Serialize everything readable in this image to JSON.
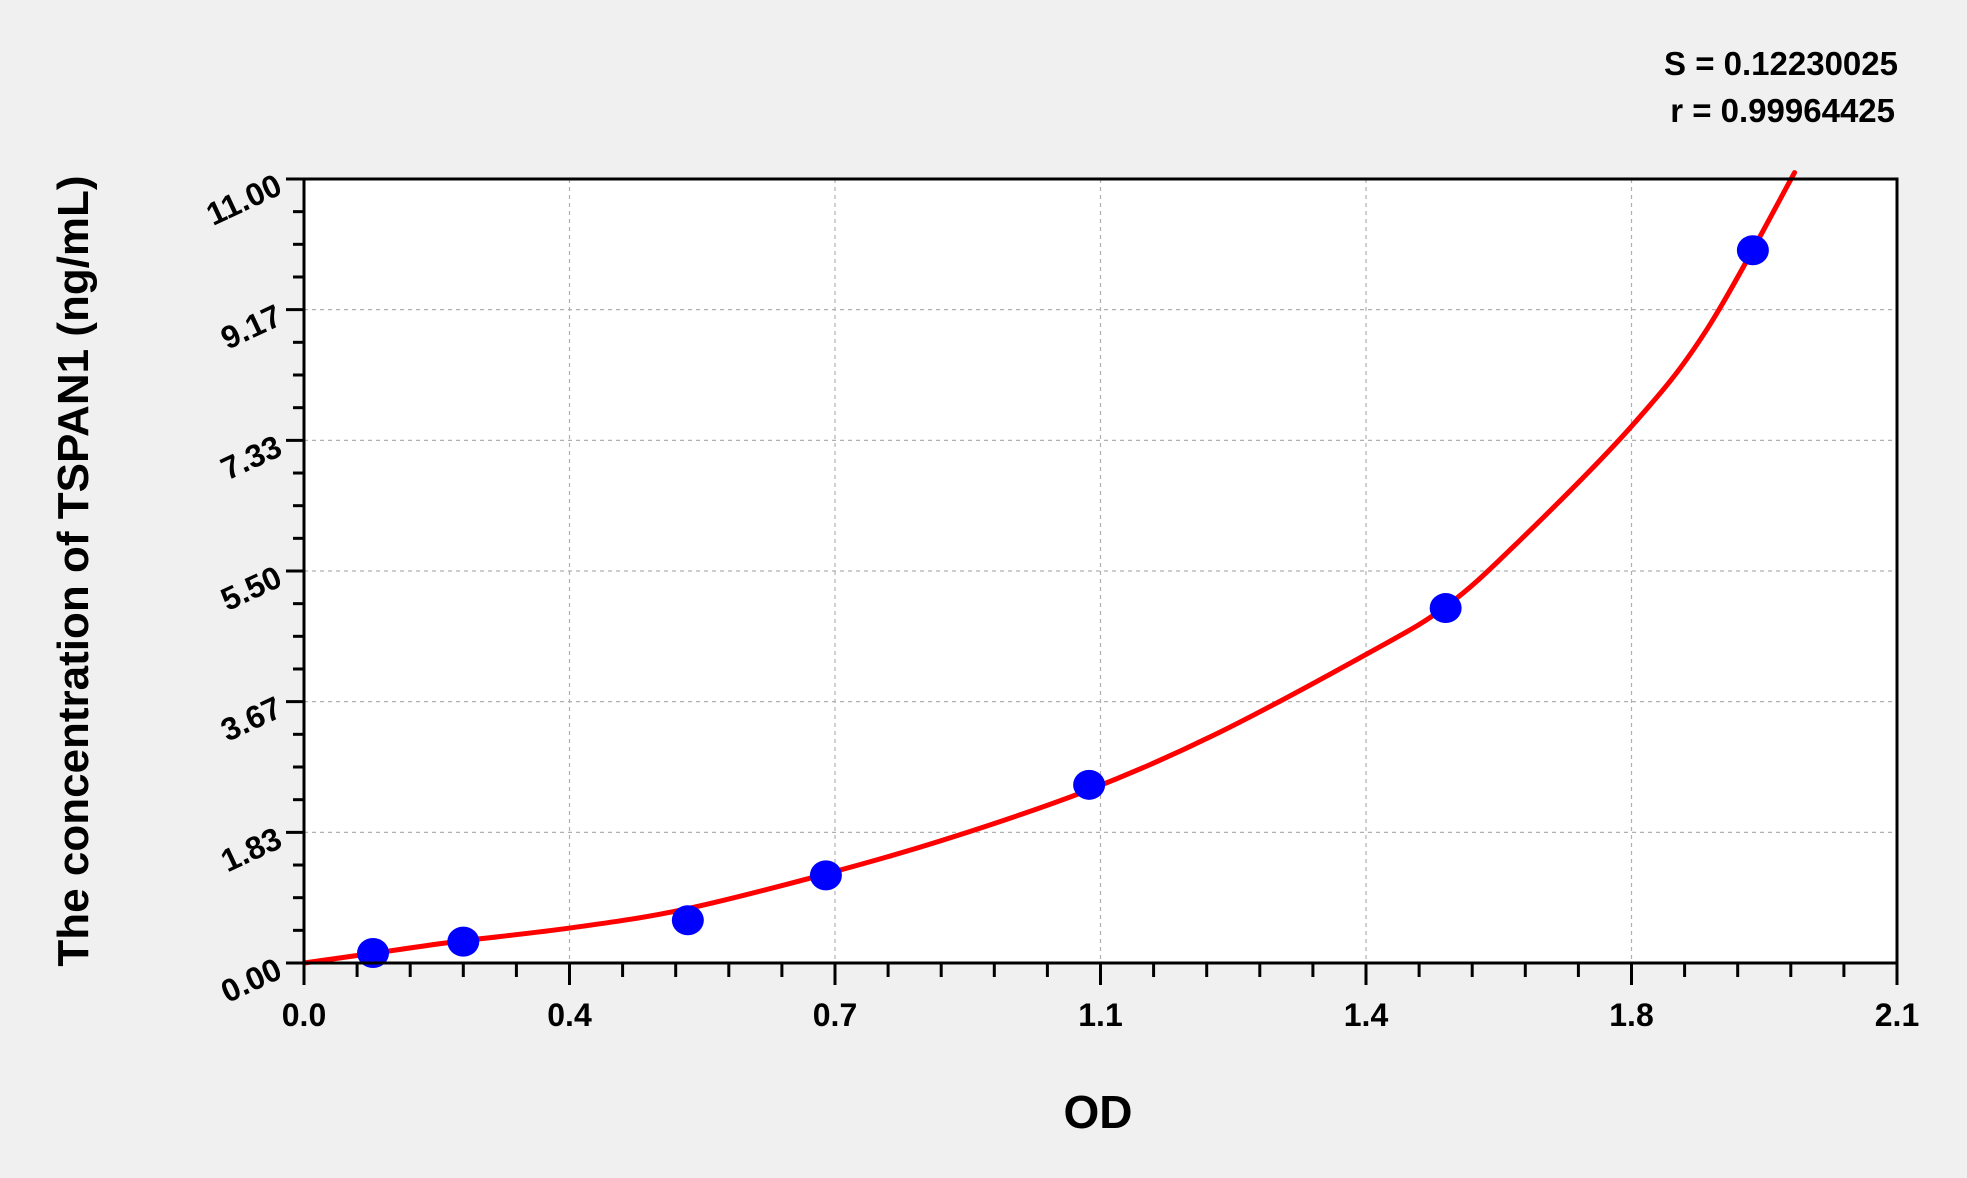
{
  "chart_data": {
    "type": "scatter",
    "title": "",
    "xlabel": "OD",
    "ylabel": "The concentration of TSPAN1 (ng/mL)",
    "xlim": [
      0,
      2.1
    ],
    "ylim": [
      0,
      11
    ],
    "x_ticks": [
      0,
      0.35,
      0.7,
      1.05,
      1.4,
      1.75,
      2.1
    ],
    "x_tick_labels": [
      "0.0",
      "0.4",
      "0.7",
      "1.1",
      "1.4",
      "1.8",
      "2.1"
    ],
    "y_ticks": [
      0,
      1.833,
      3.667,
      5.5,
      7.333,
      9.167,
      11
    ],
    "y_tick_labels": [
      "0.00",
      "1.83",
      "3.67",
      "5.50",
      "7.33",
      "9.17",
      "11.00"
    ],
    "grid": true,
    "stats": {
      "s_label": "S = 0.12230025",
      "r_label": "r = 0.99964425"
    },
    "points": {
      "x": [
        0.091,
        0.21,
        0.506,
        0.688,
        1.035,
        1.505,
        1.91
      ],
      "y": [
        0.14,
        0.3,
        0.6,
        1.23,
        2.5,
        4.98,
        10.0
      ],
      "color": "#0000ff"
    },
    "fit_curve": {
      "x": [
        0,
        0.1,
        0.2,
        0.35,
        0.5,
        0.688,
        0.85,
        1.035,
        1.2,
        1.4,
        1.505,
        1.6,
        1.75,
        1.85,
        1.965
      ],
      "y": [
        0,
        0.15,
        0.3,
        0.49,
        0.75,
        1.25,
        1.75,
        2.43,
        3.2,
        4.33,
        5.0,
        5.9,
        7.53,
        8.9,
        11.09
      ],
      "color": "#ff0000"
    }
  }
}
